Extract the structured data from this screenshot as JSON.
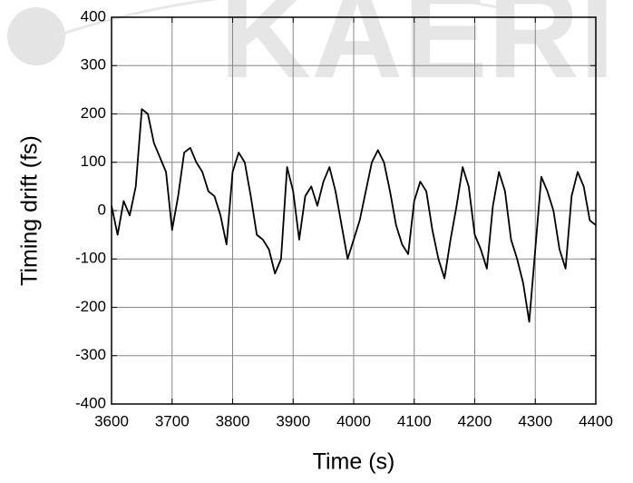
{
  "watermark": "KAERI",
  "chart_data": {
    "type": "line",
    "x_label": "Time (s)",
    "y_label": "Timing drift (fs)",
    "color": "#000000",
    "grid": true,
    "xlim": [
      3600,
      4400
    ],
    "xticks": [
      3600,
      3700,
      3800,
      3900,
      4000,
      4100,
      4200,
      4300,
      4400
    ],
    "ylim": [
      -400,
      400
    ],
    "yticks": [
      -400,
      -300,
      -200,
      -100,
      0,
      100,
      200,
      300,
      400
    ],
    "x": [
      3600,
      3610,
      3620,
      3630,
      3640,
      3650,
      3660,
      3670,
      3680,
      3690,
      3700,
      3710,
      3720,
      3730,
      3740,
      3750,
      3760,
      3770,
      3780,
      3790,
      3800,
      3810,
      3820,
      3830,
      3840,
      3850,
      3860,
      3870,
      3880,
      3890,
      3900,
      3910,
      3920,
      3930,
      3940,
      3950,
      3960,
      3970,
      3980,
      3990,
      4000,
      4010,
      4020,
      4030,
      4040,
      4050,
      4060,
      4070,
      4080,
      4090,
      4100,
      4110,
      4120,
      4130,
      4140,
      4150,
      4160,
      4170,
      4180,
      4190,
      4200,
      4210,
      4220,
      4230,
      4240,
      4250,
      4260,
      4270,
      4280,
      4290,
      4300,
      4310,
      4320,
      4330,
      4340,
      4350,
      4360,
      4370,
      4380,
      4390,
      4400
    ],
    "values": [
      10,
      -50,
      20,
      -10,
      50,
      210,
      200,
      140,
      110,
      80,
      -40,
      30,
      120,
      130,
      100,
      80,
      40,
      30,
      -10,
      -70,
      80,
      120,
      100,
      30,
      -50,
      -60,
      -80,
      -130,
      -100,
      90,
      40,
      -60,
      30,
      50,
      10,
      60,
      90,
      40,
      -30,
      -100,
      -60,
      -20,
      40,
      100,
      125,
      100,
      40,
      -30,
      -70,
      -90,
      20,
      60,
      40,
      -40,
      -100,
      -140,
      -60,
      10,
      90,
      50,
      -50,
      -80,
      -120,
      10,
      80,
      40,
      -60,
      -100,
      -150,
      -230,
      -80,
      70,
      40,
      0,
      -80,
      -120,
      30,
      80,
      50,
      -20,
      -30
    ]
  }
}
